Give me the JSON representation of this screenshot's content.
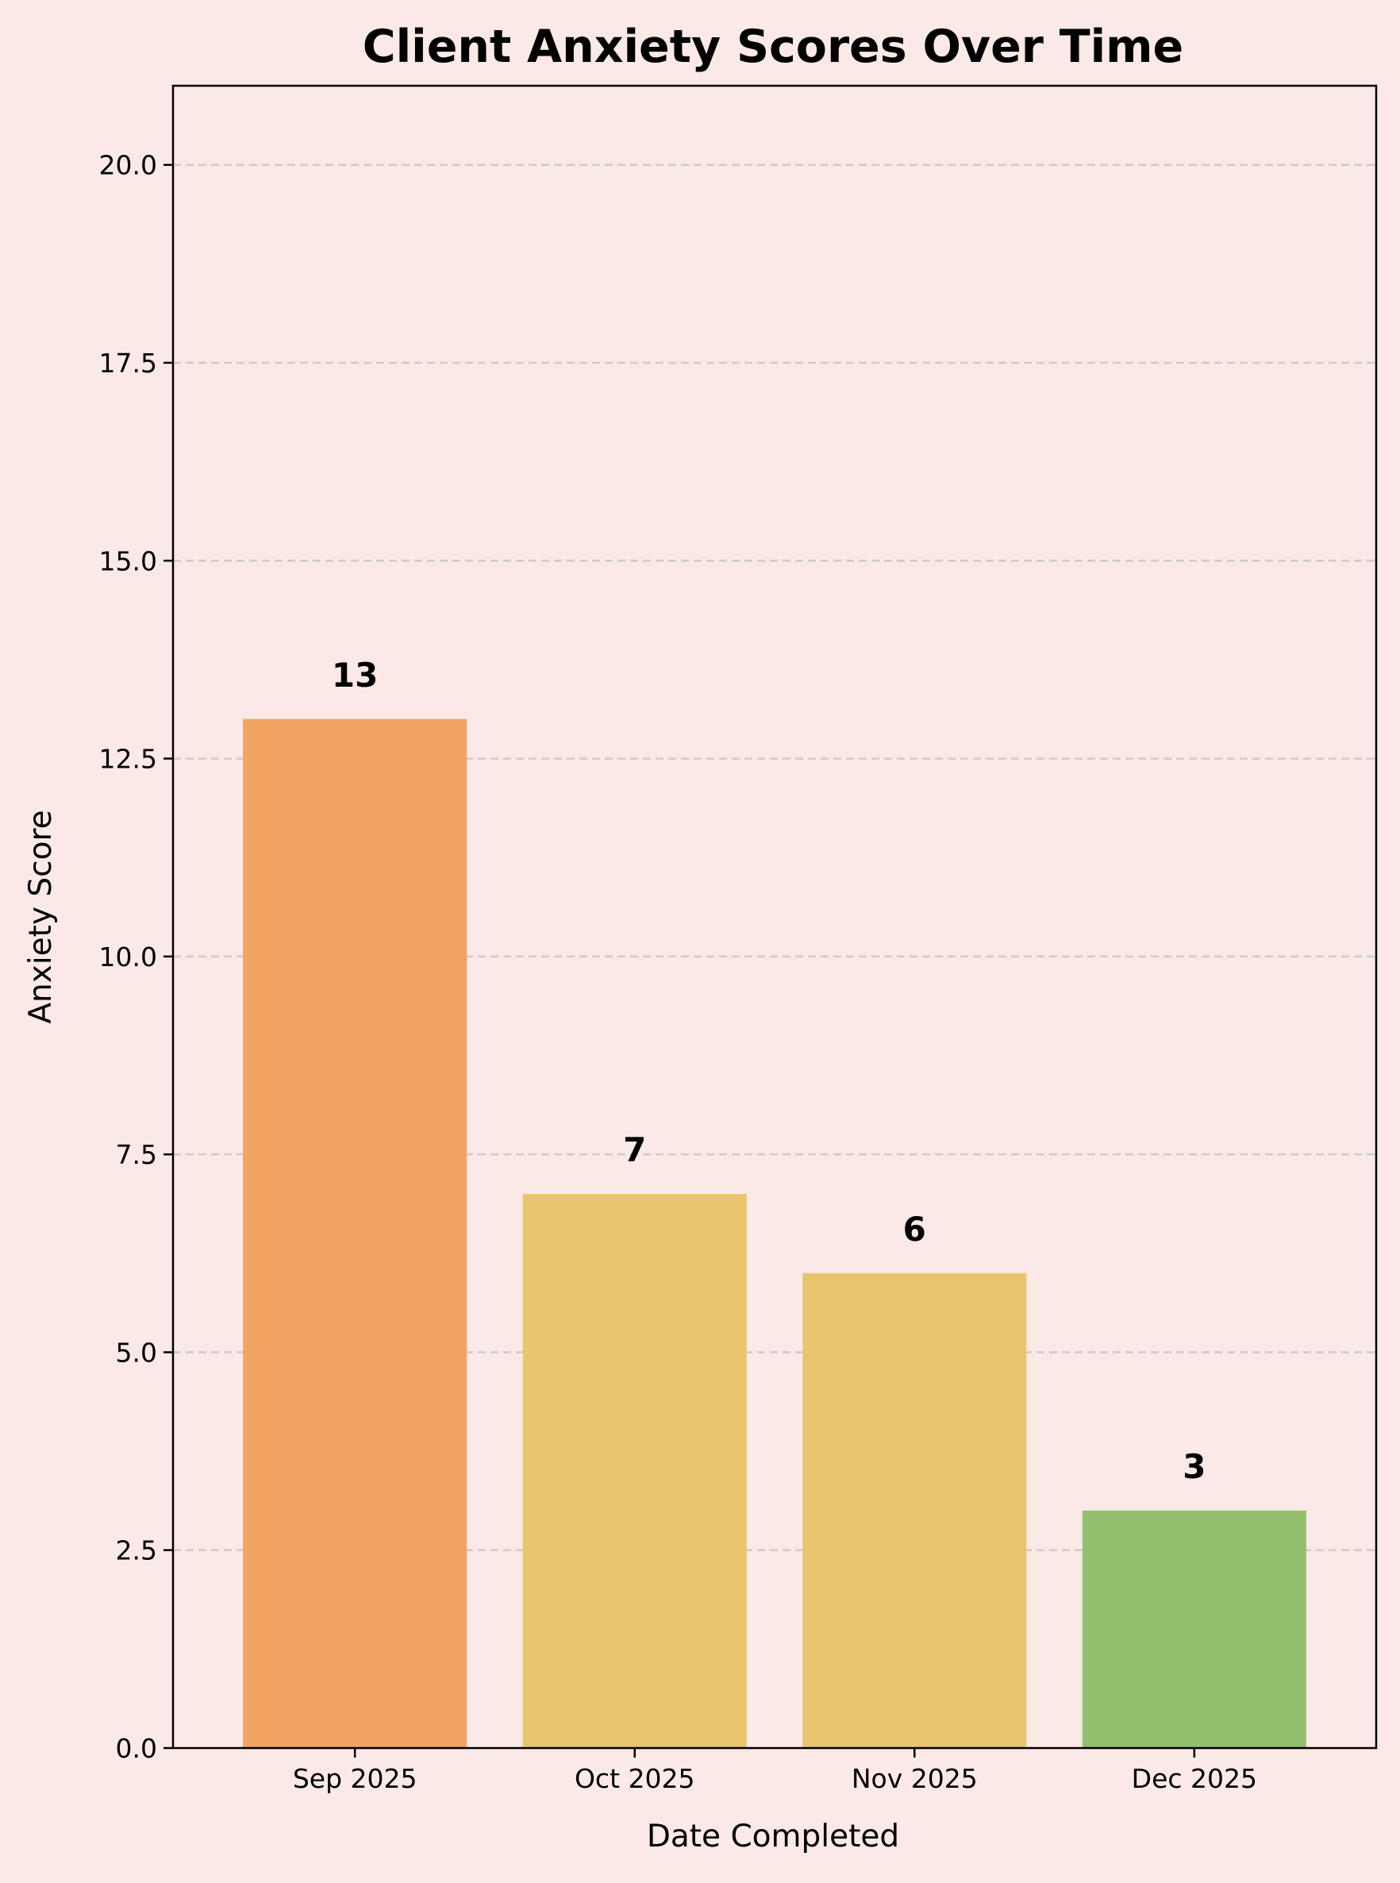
{
  "chart_data": {
    "type": "bar",
    "title": "Client Anxiety Scores Over Time",
    "xlabel": "Date Completed",
    "ylabel": "Anxiety Score",
    "categories": [
      "Sep 2025",
      "Oct 2025",
      "Nov 2025",
      "Dec 2025"
    ],
    "values": [
      13,
      7,
      6,
      3
    ],
    "value_labels": [
      "13",
      "7",
      "6",
      "3"
    ],
    "bar_colors": [
      "#f2a463",
      "#e8c56e",
      "#e8c56e",
      "#93bf6e"
    ],
    "ylim": [
      0,
      21
    ],
    "yticks": [
      0,
      2.5,
      5,
      7.5,
      10,
      12.5,
      15,
      17.5,
      20
    ],
    "ytick_labels": [
      "0.0",
      "2.5",
      "5.0",
      "7.5",
      "10.0",
      "12.5",
      "15.0",
      "17.5",
      "20.0"
    ],
    "grid": "y-dashed",
    "legend": "none",
    "background_color": "#fae9e6"
  }
}
